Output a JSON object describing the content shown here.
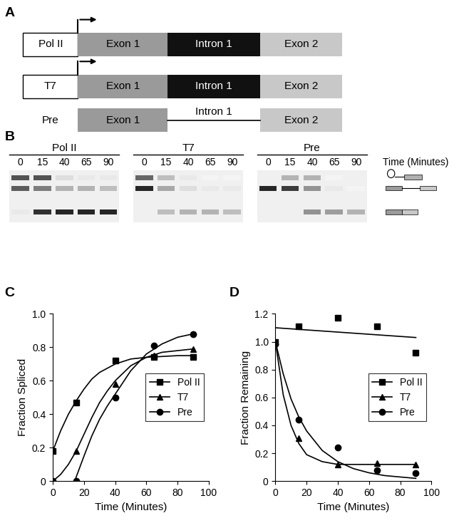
{
  "panel_labels": [
    "A",
    "B",
    "C",
    "D"
  ],
  "diagram": {
    "constructs": [
      {
        "promoter": "Pol II",
        "segments": [
          "Exon 1",
          "Intron 1",
          "Exon 2"
        ]
      },
      {
        "promoter": "T7",
        "segments": [
          "Exon 1",
          "Intron 1",
          "Exon 2"
        ]
      },
      {
        "label": "Pre",
        "segments": [
          "Exon 1",
          "Intron 1",
          "Exon 2"
        ]
      }
    ]
  },
  "gel": {
    "time_label": "Time (Minutes)",
    "groups": [
      {
        "label": "Pol II",
        "times": [
          0,
          15,
          40,
          65,
          90
        ],
        "bands": {
          "lariat": [
            0.8,
            0.8,
            0.15,
            0.1,
            0.1
          ],
          "pre_mrna": [
            0.75,
            0.6,
            0.35,
            0.35,
            0.3
          ],
          "spliced": [
            0.1,
            0.95,
            1.0,
            1.0,
            1.0
          ]
        }
      },
      {
        "label": "T7",
        "times": [
          0,
          15,
          40,
          65,
          90
        ],
        "bands": {
          "lariat": [
            0.7,
            0.3,
            0.1,
            0.05,
            0.05
          ],
          "pre_mrna": [
            1.0,
            0.4,
            0.15,
            0.1,
            0.1
          ],
          "spliced": [
            0,
            0.3,
            0.35,
            0.35,
            0.3
          ]
        }
      },
      {
        "label": "Pre",
        "times": [
          0,
          15,
          40,
          65,
          90
        ],
        "bands": {
          "lariat": [
            0,
            0.35,
            0.35,
            0.05,
            0
          ],
          "pre_mrna": [
            1.0,
            0.9,
            0.5,
            0.1,
            0.05
          ],
          "spliced": [
            0,
            0,
            0.5,
            0.45,
            0.35
          ]
        }
      }
    ]
  },
  "chart_data": [
    {
      "type": "line",
      "x_label": "Time (Minutes)",
      "y_label": "Fraction Spliced",
      "x": [
        0,
        15,
        40,
        65,
        90
      ],
      "xlim": [
        0,
        100
      ],
      "xticks": [
        0,
        20,
        40,
        60,
        80,
        100
      ],
      "ylim": [
        0,
        1
      ],
      "yticks": [
        0,
        0.2,
        0.4,
        0.6,
        0.8,
        {
          "value": 1,
          "label": "1.0"
        }
      ],
      "legend": "center right",
      "series": [
        {
          "name": "Pol II",
          "color": "#000000",
          "marker": "square",
          "values": [
            0.18,
            0.47,
            0.72,
            0.74,
            0.74
          ],
          "fit": {
            "x": [
              0,
              5,
              10,
              15,
              20,
              25,
              30,
              40,
              50,
              60,
              70,
              80,
              90
            ],
            "values": [
              0.18,
              0.3,
              0.4,
              0.48,
              0.55,
              0.61,
              0.65,
              0.7,
              0.73,
              0.74,
              0.745,
              0.75,
              0.75
            ]
          }
        },
        {
          "name": "T7",
          "color": "#000000",
          "marker": "triangle",
          "values": [
            0,
            0.18,
            0.58,
            0.75,
            0.79
          ],
          "fit": {
            "x": [
              0,
              5,
              10,
              15,
              20,
              25,
              30,
              35,
              40,
              50,
              60,
              70,
              80,
              90
            ],
            "values": [
              0,
              0.04,
              0.1,
              0.18,
              0.28,
              0.38,
              0.47,
              0.54,
              0.6,
              0.69,
              0.74,
              0.77,
              0.78,
              0.79
            ]
          }
        },
        {
          "name": "Pre",
          "color": "#000000",
          "marker": "circle",
          "values": [
            0,
            0,
            0.5,
            0.81,
            0.88
          ],
          "fit": {
            "x": [
              14,
              20,
              25,
              30,
              35,
              40,
              50,
              60,
              70,
              80,
              90
            ],
            "values": [
              0,
              0.15,
              0.27,
              0.37,
              0.45,
              0.52,
              0.66,
              0.76,
              0.82,
              0.86,
              0.88
            ]
          }
        }
      ]
    },
    {
      "type": "line",
      "x_label": "Time (Minutes)",
      "y_label": "Fraction Remaining",
      "x": [
        0,
        15,
        40,
        65,
        90
      ],
      "xlim": [
        0,
        100
      ],
      "xticks": [
        0,
        20,
        40,
        60,
        80,
        100
      ],
      "ylim": [
        0,
        1.2
      ],
      "yticks": [
        0,
        0.2,
        0.4,
        0.6,
        0.8,
        {
          "value": 1,
          "label": "1.0"
        },
        1.2
      ],
      "legend": "center right",
      "series": [
        {
          "name": "Pol II",
          "color": "#000000",
          "marker": "square",
          "values": [
            1.0,
            1.11,
            1.17,
            1.11,
            0.92
          ],
          "fit": {
            "x": [
              0,
              90
            ],
            "values": [
              1.1,
              1.03
            ]
          }
        },
        {
          "name": "T7",
          "color": "#000000",
          "marker": "triangle",
          "values": [
            1.0,
            0.31,
            0.12,
            0.13,
            0.12
          ],
          "fit": {
            "x": [
              0,
              5,
              10,
              15,
              20,
              30,
              40,
              60,
              90
            ],
            "values": [
              1.0,
              0.62,
              0.4,
              0.27,
              0.19,
              0.14,
              0.12,
              0.12,
              0.12
            ]
          }
        },
        {
          "name": "Pre",
          "color": "#000000",
          "marker": "circle",
          "values": [
            0.98,
            0.44,
            0.24,
            0.08,
            0.06
          ],
          "fit": {
            "x": [
              0,
              5,
              10,
              15,
              20,
              30,
              40,
              50,
              60,
              70,
              80,
              90
            ],
            "values": [
              1.0,
              0.77,
              0.59,
              0.46,
              0.36,
              0.22,
              0.14,
              0.09,
              0.06,
              0.04,
              0.03,
              0.02
            ]
          }
        }
      ]
    }
  ]
}
